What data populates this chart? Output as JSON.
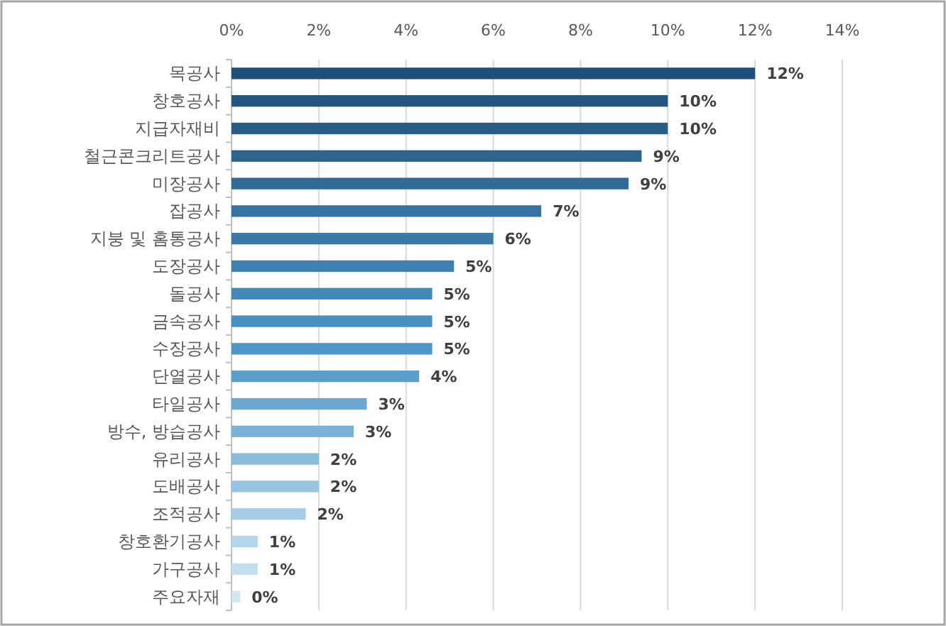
{
  "chart_data": {
    "type": "bar",
    "orientation": "horizontal",
    "grid": "x",
    "categories": [
      "목공사",
      "창호공사",
      "지급자재비",
      "철근콘크리트공사",
      "미장공사",
      "잡공사",
      "지붕 및 홈통공사",
      "도장공사",
      "돌공사",
      "금속공사",
      "수장공사",
      "단열공사",
      "타일공사",
      "방수, 방습공사",
      "유리공사",
      "도배공사",
      "조적공사",
      "창호환기공사",
      "가구공사",
      "주요자재"
    ],
    "values": [
      12.0,
      10.0,
      10.0,
      9.4,
      9.1,
      7.1,
      6.0,
      5.1,
      4.6,
      4.6,
      4.6,
      4.3,
      3.1,
      2.8,
      2.0,
      2.0,
      1.7,
      0.6,
      0.6,
      0.2
    ],
    "value_labels": [
      "12%",
      "10%",
      "10%",
      "9%",
      "9%",
      "7%",
      "6%",
      "5%",
      "5%",
      "5%",
      "5%",
      "4%",
      "3%",
      "3%",
      "2%",
      "2%",
      "2%",
      "1%",
      "1%",
      "0%"
    ],
    "colors": [
      "#1f4e79",
      "#23557f",
      "#285d87",
      "#2d648f",
      "#326b97",
      "#3673a0",
      "#3a7aa8",
      "#3e82b0",
      "#4389b8",
      "#4890c0",
      "#4d96c5",
      "#5a9fcb",
      "#6aa8d0",
      "#7ab1d6",
      "#89bbdb",
      "#97c4e0",
      "#a6cde5",
      "#b4d6ea",
      "#c2deef",
      "#d0e6f3"
    ],
    "xlim": [
      0,
      14
    ],
    "xticks": [
      {
        "value": 0,
        "label": "0%"
      },
      {
        "value": 2,
        "label": "2%"
      },
      {
        "value": 4,
        "label": "4%"
      },
      {
        "value": 6,
        "label": "6%"
      },
      {
        "value": 8,
        "label": "8%"
      },
      {
        "value": 10,
        "label": "10%"
      },
      {
        "value": 12,
        "label": "12%"
      },
      {
        "value": 14,
        "label": "14%"
      }
    ]
  }
}
